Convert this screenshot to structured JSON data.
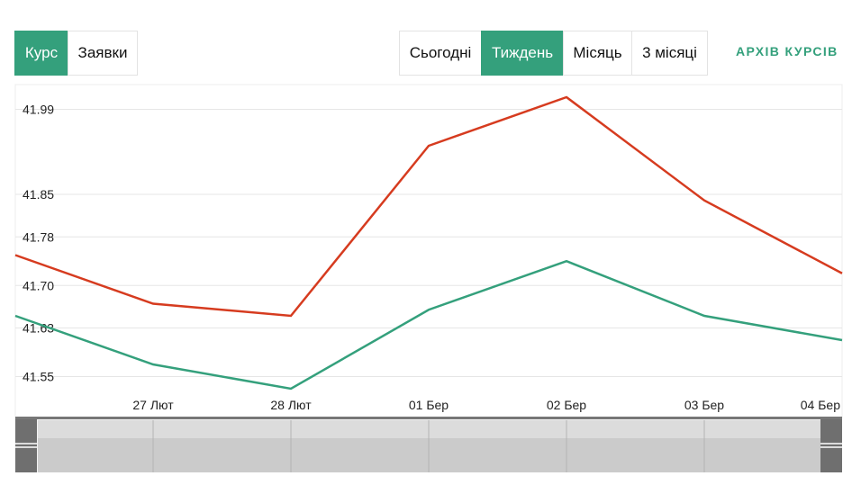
{
  "mode_tabs": [
    {
      "label": "Курс",
      "active": true
    },
    {
      "label": "Заявки",
      "active": false
    }
  ],
  "period_tabs": [
    {
      "label": "Сьогодні",
      "active": false
    },
    {
      "label": "Тиждень",
      "active": true
    },
    {
      "label": "Місяць",
      "active": false
    },
    {
      "label": "3 місяці",
      "active": false
    }
  ],
  "archive_link": "АРХІВ КУРСІВ",
  "colors": {
    "accent": "#34a07c",
    "sell": "#d63b1f",
    "buy": "#34a07c"
  },
  "chart_data": {
    "type": "line",
    "x": [
      "",
      "27 Лют",
      "28 Лют",
      "01 Бер",
      "02 Бер",
      "03 Бер",
      "04 Бер"
    ],
    "y_ticks": [
      41.99,
      41.85,
      41.78,
      41.7,
      41.63,
      41.55
    ],
    "series": [
      {
        "color": "#d63b1f",
        "values": [
          41.75,
          41.67,
          41.65,
          41.93,
          42.01,
          41.84,
          41.72
        ]
      },
      {
        "color": "#34a07c",
        "values": [
          41.65,
          41.57,
          41.53,
          41.66,
          41.74,
          41.65,
          41.61
        ]
      }
    ],
    "ylim": [
      41.53,
      42.01
    ],
    "grid": true,
    "navigator": true
  }
}
